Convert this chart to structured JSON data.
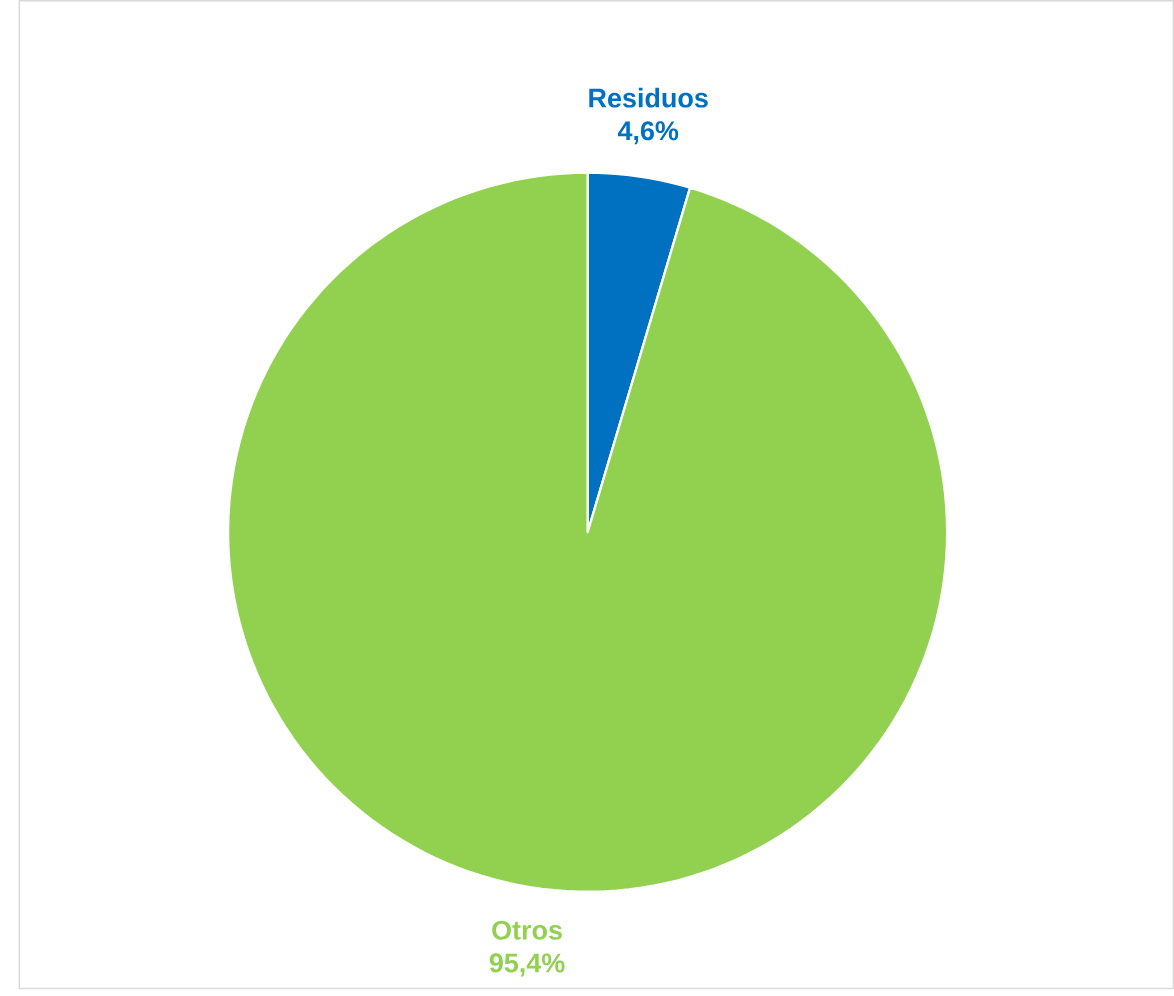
{
  "chart_data": {
    "type": "pie",
    "categories": [
      "Residuos",
      "Otros"
    ],
    "values": [
      4.6,
      95.4
    ],
    "colors": [
      "#0070c0",
      "#92d050"
    ],
    "value_labels": [
      "4,6%",
      "95,4%"
    ]
  }
}
